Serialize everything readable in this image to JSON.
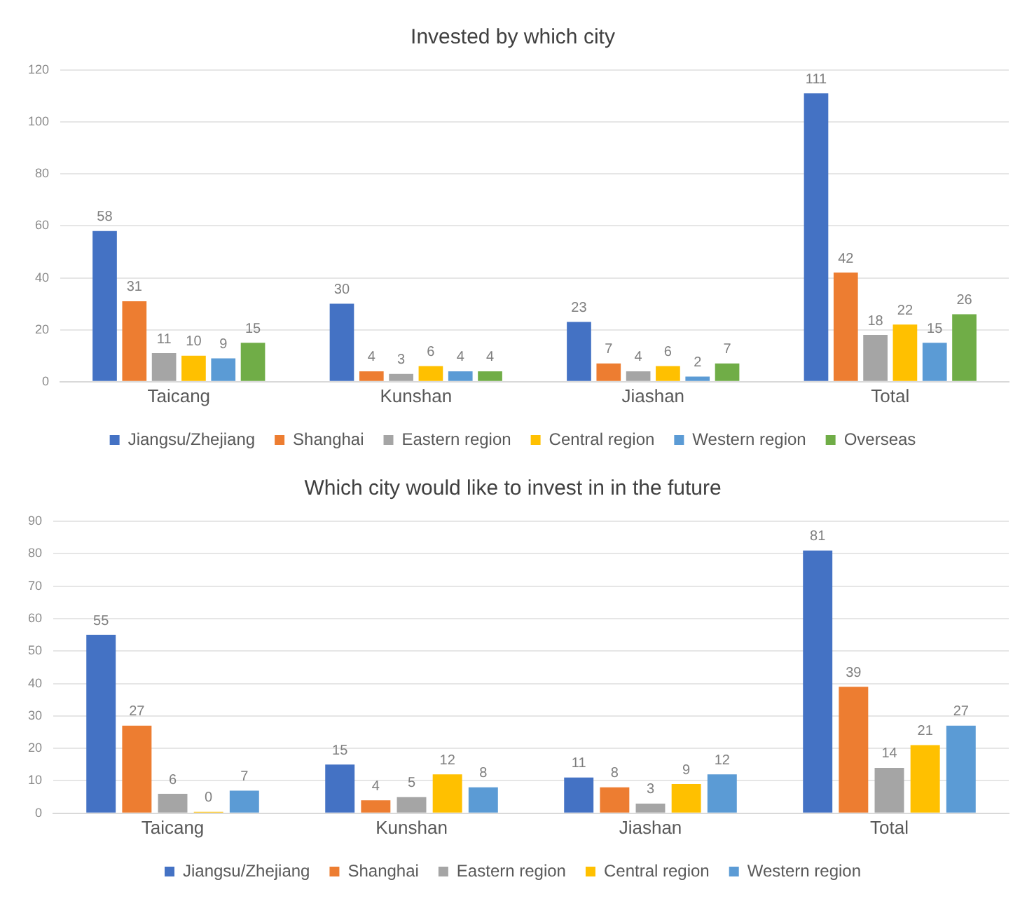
{
  "chart_data": [
    {
      "type": "bar",
      "title": "Invested by which city",
      "categories": [
        "Taicang",
        "Kunshan",
        "Jiashan",
        "Total"
      ],
      "series": [
        {
          "name": "Jiangsu/Zhejiang",
          "color": "#4472c4",
          "values": [
            58,
            30,
            23,
            111
          ]
        },
        {
          "name": "Shanghai",
          "color": "#ed7d31",
          "values": [
            31,
            4,
            7,
            42
          ]
        },
        {
          "name": "Eastern region",
          "color": "#a5a5a5",
          "values": [
            11,
            3,
            4,
            18
          ]
        },
        {
          "name": "Central region",
          "color": "#ffc000",
          "values": [
            10,
            6,
            6,
            22
          ]
        },
        {
          "name": "Western region",
          "color": "#5b9bd5",
          "values": [
            9,
            4,
            2,
            15
          ]
        },
        {
          "name": "Overseas",
          "color": "#70ad47",
          "values": [
            15,
            4,
            7,
            26
          ]
        }
      ],
      "ylim": [
        0,
        120
      ],
      "yticks": [
        0,
        20,
        40,
        60,
        80,
        100,
        120
      ],
      "grid": "y",
      "legend": "bottom",
      "data_labels": true
    },
    {
      "type": "bar",
      "title": "Which city would like to invest in in the future",
      "categories": [
        "Taicang",
        "Kunshan",
        "Jiashan",
        "Total"
      ],
      "series": [
        {
          "name": "Jiangsu/Zhejiang",
          "color": "#4472c4",
          "values": [
            55,
            15,
            11,
            81
          ]
        },
        {
          "name": "Shanghai",
          "color": "#ed7d31",
          "values": [
            27,
            4,
            8,
            39
          ]
        },
        {
          "name": "Eastern region",
          "color": "#a5a5a5",
          "values": [
            6,
            5,
            3,
            14
          ]
        },
        {
          "name": "Central region",
          "color": "#ffc000",
          "values": [
            0,
            12,
            9,
            21
          ]
        },
        {
          "name": "Western region",
          "color": "#5b9bd5",
          "values": [
            7,
            8,
            12,
            27
          ]
        }
      ],
      "ylim": [
        0,
        90
      ],
      "yticks": [
        0,
        10,
        20,
        30,
        40,
        50,
        60,
        70,
        80,
        90
      ],
      "grid": "y",
      "legend": "bottom",
      "data_labels": true
    }
  ]
}
